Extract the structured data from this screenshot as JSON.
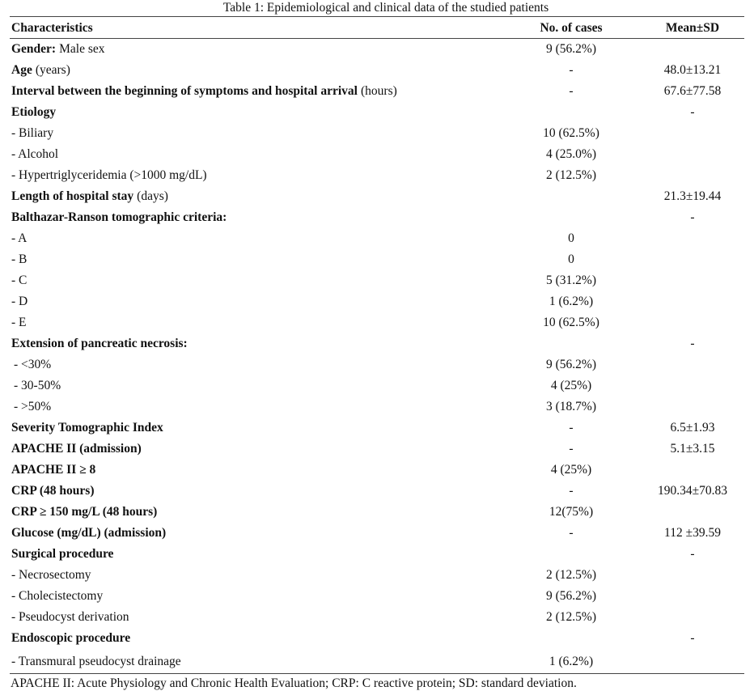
{
  "caption": "Table 1: Epidemiological and clinical data of the studied patients",
  "table": {
    "header": [
      "Characteristics",
      "No. of cases",
      "Mean±SD"
    ],
    "rows": [
      {
        "head": "Gender:",
        "text": "Male sex",
        "cases": "9 (56.2%)"
      },
      {
        "head": "Age",
        "text": "(years)",
        "cases": "-",
        "mean": "48.0±13.21"
      },
      {
        "head": "Interval between the beginning of symptoms and hospital arrival",
        "text": "(hours)",
        "cases": "-",
        "mean": "67.6±77.58"
      },
      {
        "head": "Etiology",
        "mean": "-"
      },
      {
        "text": "- Biliary",
        "cases": "10 (62.5%)"
      },
      {
        "text": "- Alcohol",
        "cases": "4 (25.0%)"
      },
      {
        "text": "- Hypertriglyceridemia (>1000 mg/dL)",
        "cases": "2 (12.5%)"
      },
      {
        "head": "Length of hospital stay",
        "text": "(days)",
        "mean": "21.3±19.44"
      },
      {
        "head": "Balthazar-Ranson tomographic criteria:",
        "mean": "-"
      },
      {
        "text": "- A",
        "cases": "0"
      },
      {
        "text": "- B",
        "cases": "0"
      },
      {
        "text": "- C",
        "cases": "5 (31.2%)"
      },
      {
        "text": "- D",
        "cases": "1 (6.2%)"
      },
      {
        "text": "- E",
        "cases": "10 (62.5%)"
      },
      {
        "head": "Extension of pancreatic necrosis:",
        "mean": "-"
      },
      {
        "text": "- <30%",
        "cases": "9 (56.2%)"
      },
      {
        "text": "- 30-50%",
        "cases": "4 (25%)"
      },
      {
        "text": "- >50%",
        "cases": "3 (18.7%)"
      },
      {
        "head": "Severity Tomographic Index",
        "cases": "-",
        "mean": "6.5±1.93"
      },
      {
        "head": "APACHE II (admission)",
        "cases": "-",
        "mean": "5.1±3.15"
      },
      {
        "head": "APACHE II ≥ 8",
        "cases": "4 (25%)"
      },
      {
        "head": "CRP (48 hours)",
        "cases": "-",
        "mean": "190.34±70.83"
      },
      {
        "head": "CRP ≥ 150 mg/L (48 hours)",
        "cases": "12(75%)"
      },
      {
        "head": "Glucose (mg/dL) (admission)",
        "cases": "-",
        "mean": "112 ±39.59"
      },
      {
        "head": "Surgical procedure",
        "mean": "-"
      },
      {
        "text": "- Necrosectomy",
        "cases": "2 (12.5%)"
      },
      {
        "text": "- Cholecistectomy",
        "cases": "9 (56.2%)"
      },
      {
        "text": "- Pseudocyst derivation",
        "cases": "2 (12.5%)"
      },
      {
        "head": "Endoscopic procedure",
        "mean": "-"
      },
      {
        "text": "- Transmural pseudocyst drainage",
        "cases": "1 (6.2%)"
      }
    ]
  },
  "footnote": "APACHE II: Acute Physiology and Chronic Health Evaluation; CRP: C reactive protein; SD: standard deviation."
}
